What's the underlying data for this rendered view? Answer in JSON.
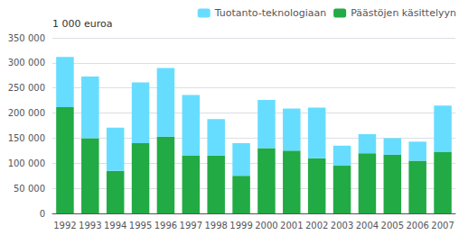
{
  "chart_data": {
    "type": "bar",
    "stacked": true,
    "categories": [
      "1992",
      "1993",
      "1994",
      "1995",
      "1996",
      "1997",
      "1998",
      "1999",
      "2000",
      "2001",
      "2002",
      "2003",
      "2004",
      "2005",
      "2006",
      "2007"
    ],
    "series": [
      {
        "name": "Päästöjen käsittelyyn",
        "color": "#22aa44",
        "values": [
          212000,
          150000,
          85000,
          140000,
          153000,
          115000,
          115000,
          75000,
          130000,
          125000,
          110000,
          95000,
          120000,
          117000,
          105000,
          122000
        ]
      },
      {
        "name": "Tuotanto-teknologiaan",
        "color": "#66ddff",
        "values": [
          100000,
          123000,
          86000,
          121000,
          137000,
          121000,
          73000,
          65000,
          96000,
          84000,
          101000,
          40000,
          38000,
          33000,
          38000,
          93000
        ]
      }
    ],
    "ylabel": "1 000 euroa",
    "ylim": [
      0,
      350000
    ],
    "yticks": [
      0,
      {
        "value": 50000,
        "label": "50 000"
      },
      {
        "value": 100000,
        "label": "100 000"
      },
      {
        "value": 150000,
        "label": "150 000"
      },
      {
        "value": 200000,
        "label": "200 000"
      },
      {
        "value": 250000,
        "label": "250 000"
      },
      {
        "value": 300000,
        "label": "300 000"
      },
      {
        "value": 350000,
        "label": "350 000"
      }
    ],
    "grid": true,
    "legend": "upper right"
  }
}
